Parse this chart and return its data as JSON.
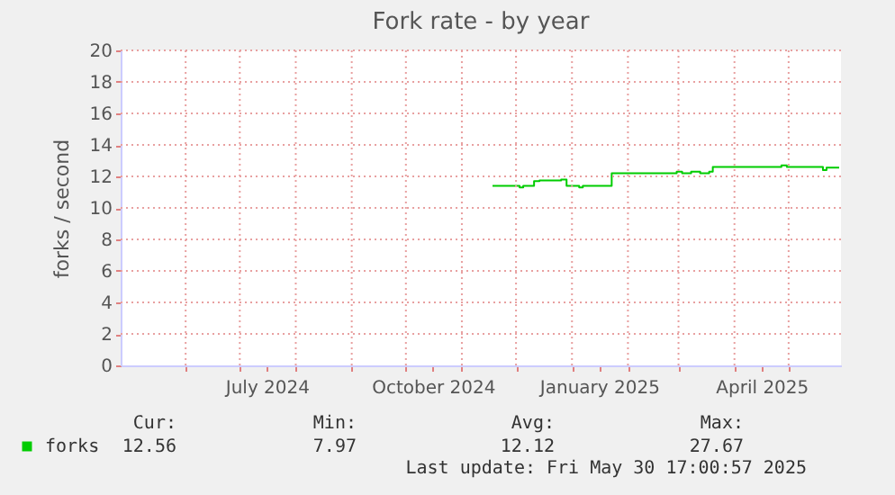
{
  "chart_data": {
    "type": "step",
    "title": "Fork rate - by year",
    "ylabel": "forks / second",
    "xlim": [
      "2024-04-26",
      "2025-05-30"
    ],
    "xticks": [
      {
        "value": "2024-06-01",
        "label": null
      },
      {
        "value": "2024-07-01",
        "label": null
      },
      {
        "value": "2024-07-16",
        "label": "July 2024"
      },
      {
        "value": "2024-08-01",
        "label": null
      },
      {
        "value": "2024-09-01",
        "label": null
      },
      {
        "value": "2024-10-01",
        "label": null
      },
      {
        "value": "2024-10-16",
        "label": "October 2024"
      },
      {
        "value": "2024-11-01",
        "label": null
      },
      {
        "value": "2024-12-01",
        "label": null
      },
      {
        "value": "2025-01-01",
        "label": null
      },
      {
        "value": "2025-01-16",
        "label": "January 2025"
      },
      {
        "value": "2025-02-01",
        "label": null
      },
      {
        "value": "2025-03-01",
        "label": null
      },
      {
        "value": "2025-04-01",
        "label": null
      },
      {
        "value": "2025-04-16",
        "label": "April 2025"
      },
      {
        "value": "2025-05-01",
        "label": null
      }
    ],
    "ylim": [
      0,
      20
    ],
    "yticks": [
      0,
      2,
      4,
      6,
      8,
      10,
      12,
      14,
      16,
      18,
      20
    ],
    "grid": true,
    "legend": "bottom left",
    "x": [
      "2024-11-18",
      "2024-12-03",
      "2024-12-05",
      "2024-12-11",
      "2024-12-14",
      "2024-12-26",
      "2024-12-29",
      "2025-01-05",
      "2025-01-07",
      "2025-01-10",
      "2025-01-23",
      "2025-02-28",
      "2025-03-03",
      "2025-03-08",
      "2025-03-13",
      "2025-03-18",
      "2025-03-20",
      "2025-04-27",
      "2025-04-30",
      "2025-05-20",
      "2025-05-22",
      "2025-05-29"
    ],
    "series": [
      {
        "name": "forks",
        "color": "#00cc00",
        "values": [
          11.4,
          11.3,
          11.4,
          11.7,
          11.75,
          11.8,
          11.4,
          11.3,
          11.4,
          11.4,
          12.2,
          12.3,
          12.2,
          12.3,
          12.2,
          12.3,
          12.6,
          12.7,
          12.6,
          12.4,
          12.55,
          12.55
        ]
      }
    ],
    "annotations": [
      "Cur:",
      "Min:",
      "Avg:",
      "Max:",
      "12.56",
      "7.97",
      "12.12",
      "27.67",
      "Last update: Fri May 30 17:00:57 2025"
    ]
  }
}
